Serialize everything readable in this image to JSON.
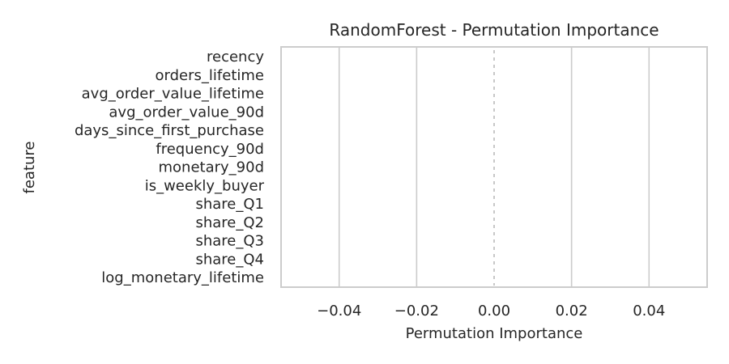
{
  "chart_data": {
    "type": "bar",
    "orientation": "horizontal",
    "title": "RandomForest - Permutation Importance",
    "xlabel": "Permutation Importance",
    "ylabel": "feature",
    "categories": [
      "recency",
      "orders_lifetime",
      "avg_order_value_lifetime",
      "avg_order_value_90d",
      "days_since_first_purchase",
      "frequency_90d",
      "monetary_90d",
      "is_weekly_buyer",
      "share_Q1",
      "share_Q2",
      "share_Q3",
      "share_Q4",
      "log_monetary_lifetime"
    ],
    "values": [
      0,
      0,
      0,
      0,
      0,
      0,
      0,
      0,
      0,
      0,
      0,
      0,
      0
    ],
    "xlim": [
      -0.055,
      0.055
    ],
    "xticks": [
      -0.04,
      -0.02,
      0.0,
      0.02,
      0.04
    ],
    "xtick_labels": [
      "−0.04",
      "−0.02",
      "0.00",
      "0.02",
      "0.04"
    ],
    "grid": "vertical",
    "reference_line": 0,
    "colors": {
      "frame": "#cccccc",
      "grid": "#cccccc",
      "reference_line": "#bbbbbb",
      "text": "#262626",
      "bar": "#4c72b0"
    }
  }
}
